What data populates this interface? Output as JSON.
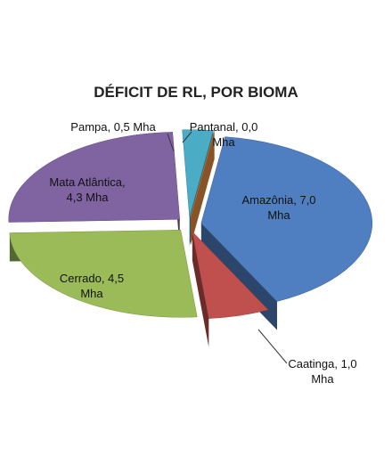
{
  "chart_data": {
    "type": "pie3d",
    "title": "DÉFICIT DE RL, POR BIOMA",
    "values": [
      7.0,
      1.0,
      4.5,
      4.3,
      0.5,
      0.0
    ],
    "value_labels": [
      "Amazônia, 7,0 Mha",
      "Caatinga, 1,0 Mha",
      "Cerrado, 4,5 Mha",
      "Mata Atlântica, 4,3 Mha",
      "Pampa, 0,5 Mha",
      "Pantanal, 0,0 Mha"
    ],
    "colors": [
      "#4f7fc0",
      "#c0504d",
      "#9bbb59",
      "#8064a2",
      "#4bacc6",
      "#f79646"
    ]
  }
}
